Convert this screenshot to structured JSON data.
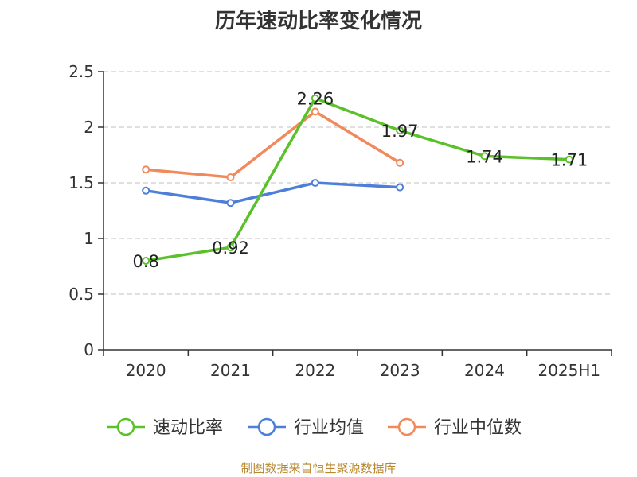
{
  "chart_data": {
    "type": "line",
    "title": "历年速动比率变化情况",
    "categories": [
      "2020",
      "2021",
      "2022",
      "2023",
      "2024",
      "2025H1"
    ],
    "ylim": [
      0,
      2.5
    ],
    "yticks": [
      "0",
      "0.5",
      "1",
      "1.5",
      "2",
      "2.5"
    ],
    "grid": true,
    "legend_position": "bottom",
    "series": [
      {
        "name": "速动比率",
        "color": "#5ac12a",
        "labels": true,
        "values": [
          0.8,
          0.92,
          2.26,
          1.97,
          1.74,
          1.71
        ],
        "value_labels": [
          "0.8",
          "0.92",
          "2.26",
          "1.97",
          "1.74",
          "1.71"
        ]
      },
      {
        "name": "行业均值",
        "color": "#4d7fd9",
        "labels": false,
        "values": [
          1.43,
          1.32,
          1.5,
          1.46,
          null,
          null
        ]
      },
      {
        "name": "行业中位数",
        "color": "#f2895b",
        "labels": false,
        "values": [
          1.62,
          1.55,
          2.14,
          1.68,
          null,
          null
        ]
      }
    ]
  },
  "source": "制图数据来自恒生聚源数据库"
}
